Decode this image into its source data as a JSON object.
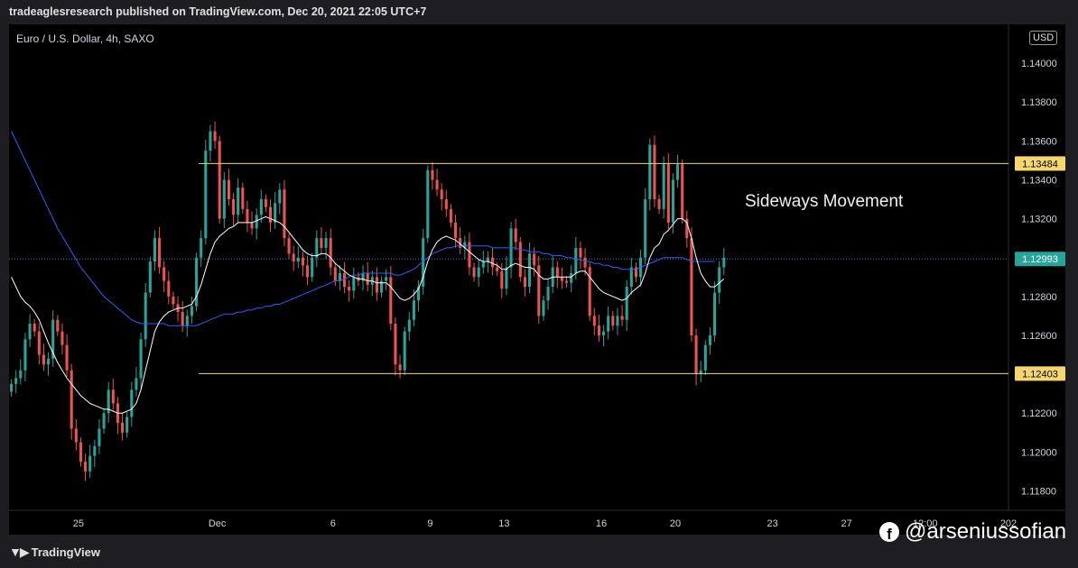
{
  "header": {
    "text": "tradeaglesresearch published on TradingView.com, Dec 20, 2021 22:05 UTC+7"
  },
  "symbol": {
    "text": "Euro / U.S. Dollar, 4h, SAXO"
  },
  "currency": "USD",
  "annotation": "Sideways Movement",
  "footer": {
    "brand": "TradingView"
  },
  "watermark": {
    "handle": "@arseniussofian"
  },
  "colors": {
    "up": "#26a69a",
    "down": "#ef5350",
    "level": "#f5d76e",
    "current": "#26a69a",
    "ma_white": "#ffffff",
    "ma_blue": "#2962ff"
  },
  "chart_data": {
    "type": "candlestick",
    "ylim": [
      1.117,
      1.142
    ],
    "y_ticks": [
      "1.11800",
      "1.12000",
      "1.12200",
      "1.12400",
      "1.12600",
      "1.12800",
      "1.13000",
      "1.13200",
      "1.13400",
      "1.13600",
      "1.13800",
      "1.14000"
    ],
    "x_ticks": [
      {
        "label": "25",
        "idx": 15
      },
      {
        "label": "Dec",
        "idx": 45
      },
      {
        "label": "6",
        "idx": 70
      },
      {
        "label": "9",
        "idx": 91
      },
      {
        "label": "13",
        "idx": 107
      },
      {
        "label": "16",
        "idx": 128
      },
      {
        "label": "20",
        "idx": 144
      },
      {
        "label": "23",
        "idx": 165
      },
      {
        "label": "27",
        "idx": 181
      },
      {
        "label": "12:00",
        "idx": 198
      },
      {
        "label": "202",
        "idx": 216
      }
    ],
    "total_slots": 216,
    "levels": [
      {
        "value": 1.13484,
        "label": "1.13484",
        "start_idx": 41
      },
      {
        "value": 1.12403,
        "label": "1.12403",
        "start_idx": 41
      }
    ],
    "current_price": {
      "value": 1.12993,
      "label": "1.12993"
    },
    "closes": [
      1.1235,
      1.1238,
      1.1242,
      1.1258,
      1.1266,
      1.1262,
      1.125,
      1.1245,
      1.1248,
      1.1268,
      1.1262,
      1.1255,
      1.1242,
      1.1212,
      1.1205,
      1.1195,
      1.119,
      1.1198,
      1.1203,
      1.1212,
      1.122,
      1.1232,
      1.1225,
      1.1215,
      1.121,
      1.1218,
      1.1232,
      1.1238,
      1.1258,
      1.1282,
      1.1298,
      1.131,
      1.1295,
      1.1288,
      1.128,
      1.1276,
      1.1272,
      1.1265,
      1.127,
      1.1275,
      1.13,
      1.131,
      1.1355,
      1.1365,
      1.136,
      1.132,
      1.134,
      1.133,
      1.1322,
      1.1336,
      1.1325,
      1.1318,
      1.1315,
      1.1322,
      1.133,
      1.1326,
      1.1318,
      1.1328,
      1.1335,
      1.131,
      1.1302,
      1.1298,
      1.13,
      1.1296,
      1.129,
      1.13,
      1.131,
      1.1305,
      1.131,
      1.1295,
      1.1288,
      1.1292,
      1.1285,
      1.1283,
      1.129,
      1.1288,
      1.1292,
      1.1286,
      1.129,
      1.1282,
      1.1288,
      1.129,
      1.1266,
      1.1245,
      1.1242,
      1.1262,
      1.1268,
      1.1278,
      1.1285,
      1.131,
      1.1345,
      1.134,
      1.1335,
      1.133,
      1.1325,
      1.1318,
      1.131,
      1.1305,
      1.1308,
      1.1295,
      1.129,
      1.1295,
      1.1298,
      1.13,
      1.1295,
      1.1293,
      1.1284,
      1.1295,
      1.1315,
      1.1308,
      1.129,
      1.1285,
      1.1302,
      1.1296,
      1.127,
      1.1278,
      1.1285,
      1.1295,
      1.129,
      1.1288,
      1.1287,
      1.1292,
      1.1305,
      1.13,
      1.1295,
      1.127,
      1.1265,
      1.126,
      1.1262,
      1.127,
      1.1265,
      1.127,
      1.1268,
      1.1285,
      1.1295,
      1.129,
      1.13,
      1.133,
      1.1358,
      1.133,
      1.1325,
      1.1348,
      1.1318,
      1.134,
      1.1348,
      1.132,
      1.131,
      1.126,
      1.124,
      1.1242,
      1.1255,
      1.126,
      1.1282,
      1.1295,
      1.13
    ],
    "ma_white": [
      1.129,
      1.1285,
      1.128,
      1.1277,
      1.1275,
      1.1272,
      1.1268,
      1.1262,
      1.1256,
      1.1251,
      1.1246,
      1.1242,
      1.1238,
      1.1235,
      1.1232,
      1.1229,
      1.1227,
      1.1225,
      1.1224,
      1.1223,
      1.1222,
      1.1222,
      1.1221,
      1.122,
      1.122,
      1.1221,
      1.1222,
      1.1225,
      1.1232,
      1.1242,
      1.1252,
      1.1262,
      1.1267,
      1.127,
      1.1272,
      1.1273,
      1.1274,
      1.1274,
      1.1275,
      1.1276,
      1.128,
      1.1286,
      1.1294,
      1.1302,
      1.1308,
      1.1311,
      1.1313,
      1.1315,
      1.1316,
      1.1318,
      1.1318,
      1.1318,
      1.1318,
      1.1319,
      1.132,
      1.1321,
      1.132,
      1.1319,
      1.1318,
      1.1316,
      1.1313,
      1.131,
      1.1307,
      1.1304,
      1.1302,
      1.1301,
      1.1301,
      1.1302,
      1.1302,
      1.13,
      1.1297,
      1.1295,
      1.1293,
      1.1291,
      1.129,
      1.1289,
      1.1289,
      1.1288,
      1.1288,
      1.1287,
      1.1287,
      1.1287,
      1.1285,
      1.1282,
      1.1279,
      1.1278,
      1.1279,
      1.1281,
      1.1284,
      1.129,
      1.1298,
      1.1304,
      1.1308,
      1.131,
      1.1311,
      1.131,
      1.1309,
      1.1307,
      1.1305,
      1.1303,
      1.1301,
      1.1299,
      1.1298,
      1.1298,
      1.1297,
      1.1296,
      1.1294,
      1.1294,
      1.1296,
      1.1297,
      1.1296,
      1.1295,
      1.1295,
      1.1294,
      1.1291,
      1.1289,
      1.1289,
      1.129,
      1.129,
      1.129,
      1.129,
      1.129,
      1.1292,
      1.1293,
      1.1293,
      1.129,
      1.1287,
      1.1284,
      1.1282,
      1.1281,
      1.128,
      1.1279,
      1.1278,
      1.1279,
      1.1282,
      1.1284,
      1.1286,
      1.1292,
      1.13,
      1.1305,
      1.1307,
      1.1312,
      1.1314,
      1.1317,
      1.132,
      1.132,
      1.1318,
      1.131,
      1.13,
      1.1292,
      1.1288,
      1.1285,
      1.1285,
      1.1287,
      1.1289
    ],
    "ma_blue": [
      1.1365,
      1.136,
      1.1355,
      1.135,
      1.1345,
      1.134,
      1.1335,
      1.133,
      1.1325,
      1.132,
      1.1315,
      1.1311,
      1.1307,
      1.1303,
      1.1299,
      1.1295,
      1.1292,
      1.1289,
      1.1286,
      1.1283,
      1.128,
      1.1278,
      1.1276,
      1.1274,
      1.1272,
      1.127,
      1.1268,
      1.1267,
      1.1266,
      1.1266,
      1.1266,
      1.1266,
      1.1266,
      1.1266,
      1.1265,
      1.1265,
      1.1265,
      1.1265,
      1.1265,
      1.1265,
      1.1265,
      1.1266,
      1.1267,
      1.1268,
      1.1269,
      1.127,
      1.1271,
      1.1271,
      1.1271,
      1.1272,
      1.1272,
      1.1273,
      1.1273,
      1.1274,
      1.1274,
      1.1275,
      1.1275,
      1.1276,
      1.1276,
      1.1277,
      1.1278,
      1.1279,
      1.128,
      1.1281,
      1.1282,
      1.1283,
      1.1284,
      1.1285,
      1.1286,
      1.1287,
      1.1288,
      1.1288,
      1.1289,
      1.129,
      1.1291,
      1.1291,
      1.1292,
      1.1292,
      1.1292,
      1.1292,
      1.1292,
      1.1292,
      1.1292,
      1.1291,
      1.1291,
      1.1292,
      1.1293,
      1.1294,
      1.1296,
      1.1298,
      1.13,
      1.1302,
      1.1303,
      1.1304,
      1.1305,
      1.1305,
      1.1306,
      1.1306,
      1.1306,
      1.1306,
      1.1306,
      1.1306,
      1.1306,
      1.1306,
      1.1305,
      1.1305,
      1.1305,
      1.1305,
      1.1305,
      1.1305,
      1.1304,
      1.1304,
      1.1303,
      1.1303,
      1.1303,
      1.1302,
      1.1302,
      1.1301,
      1.1301,
      1.1301,
      1.13,
      1.13,
      1.1299,
      1.1299,
      1.1298,
      1.1298,
      1.1297,
      1.1297,
      1.1296,
      1.1296,
      1.1295,
      1.1295,
      1.1294,
      1.1294,
      1.1294,
      1.1294,
      1.1295,
      1.1296,
      1.1297,
      1.1298,
      1.1299,
      1.13,
      1.13,
      1.13,
      1.13,
      1.13,
      1.1299,
      1.1298,
      1.1298,
      1.1298,
      1.1298,
      1.1298,
      1.1298
    ]
  }
}
